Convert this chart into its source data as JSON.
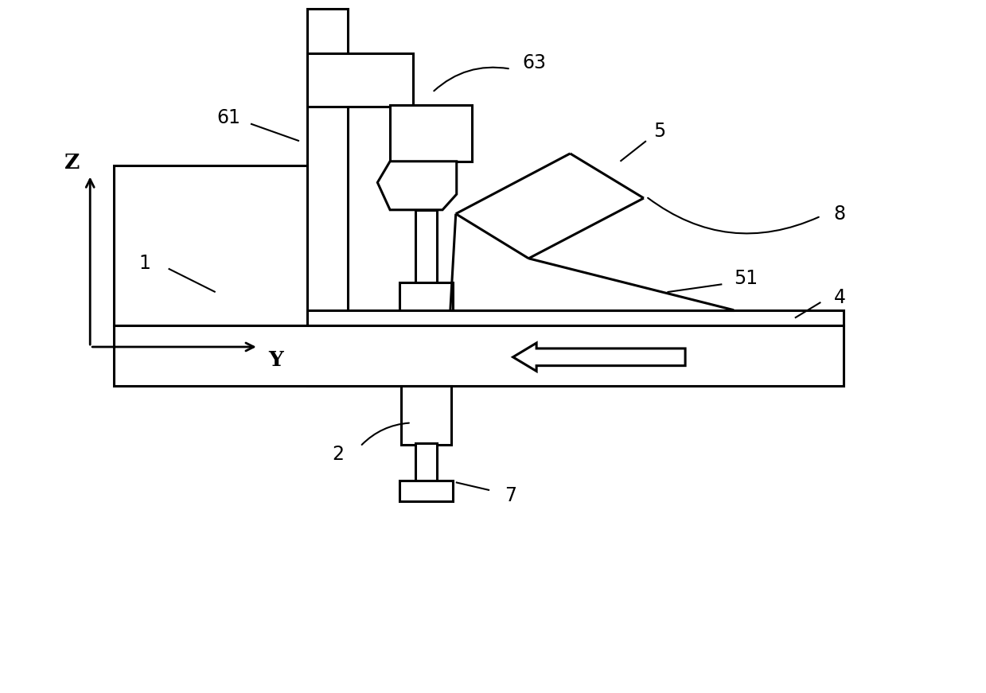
{
  "bg_color": "#ffffff",
  "line_color": "#000000",
  "lw": 2.2,
  "thin_lw": 1.5,
  "fig_width": 12.39,
  "fig_height": 8.71
}
